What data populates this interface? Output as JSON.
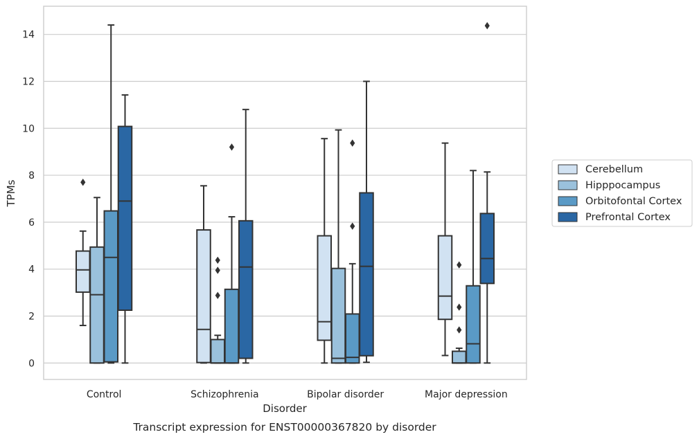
{
  "caption": "Transcript expression for ENST00000367820 by disorder",
  "chart_data": {
    "type": "box",
    "title": "",
    "xlabel": "Disorder",
    "ylabel": "TPMs",
    "ylim": [
      -0.7,
      15.2
    ],
    "yticks": [
      0,
      2,
      4,
      6,
      8,
      10,
      12,
      14
    ],
    "grid": "horizontal",
    "legend_position": "right",
    "categories": [
      "Control",
      "Schizophrenia",
      "Bipolar disorder",
      "Major depression"
    ],
    "series": [
      {
        "name": "Cerebellum",
        "color": "#d1e2f2",
        "boxes": [
          {
            "whislo": 1.6,
            "q1": 3.02,
            "med": 3.97,
            "q3": 4.77,
            "whishi": 5.62,
            "fliers": [
              7.7
            ]
          },
          {
            "whislo": 0.0,
            "q1": 0.02,
            "med": 1.43,
            "q3": 5.67,
            "whishi": 7.55,
            "fliers": []
          },
          {
            "whislo": 0.0,
            "q1": 0.97,
            "med": 1.76,
            "q3": 5.42,
            "whishi": 9.56,
            "fliers": []
          },
          {
            "whislo": 0.32,
            "q1": 1.86,
            "med": 2.85,
            "q3": 5.42,
            "whishi": 9.37,
            "fliers": []
          }
        ]
      },
      {
        "name": "Hipppocampus",
        "color": "#9ac1dc",
        "boxes": [
          {
            "whislo": 0.0,
            "q1": 0.0,
            "med": 2.91,
            "q3": 4.94,
            "whishi": 7.05,
            "fliers": []
          },
          {
            "whislo": 0.0,
            "q1": 0.0,
            "med": 0.0,
            "q3": 1.0,
            "whishi": 1.18,
            "fliers": [
              4.38,
              3.95,
              2.88
            ]
          },
          {
            "whislo": 0.0,
            "q1": 0.0,
            "med": 0.2,
            "q3": 4.03,
            "whishi": 9.93,
            "fliers": []
          },
          {
            "whislo": 0.0,
            "q1": 0.0,
            "med": 0.0,
            "q3": 0.5,
            "whishi": 0.63,
            "fliers": [
              4.18,
              2.38,
              1.41
            ]
          }
        ]
      },
      {
        "name": "Orbitofontal Cortex",
        "color": "#5a9ac6",
        "boxes": [
          {
            "whislo": 0.0,
            "q1": 0.05,
            "med": 4.5,
            "q3": 6.48,
            "whishi": 14.4,
            "fliers": []
          },
          {
            "whislo": 0.0,
            "q1": 0.0,
            "med": 0.0,
            "q3": 3.14,
            "whishi": 6.23,
            "fliers": [
              9.2
            ]
          },
          {
            "whislo": 0.0,
            "q1": 0.0,
            "med": 0.24,
            "q3": 2.09,
            "whishi": 4.23,
            "fliers": [
              9.37,
              5.83
            ]
          },
          {
            "whislo": 0.0,
            "q1": 0.0,
            "med": 0.82,
            "q3": 3.29,
            "whishi": 8.2,
            "fliers": []
          }
        ]
      },
      {
        "name": "Prefrontal Cortex",
        "color": "#2a67a4",
        "boxes": [
          {
            "whislo": 0.0,
            "q1": 2.25,
            "med": 6.9,
            "q3": 10.08,
            "whishi": 11.42,
            "fliers": []
          },
          {
            "whislo": 0.0,
            "q1": 0.2,
            "med": 4.09,
            "q3": 6.06,
            "whishi": 10.8,
            "fliers": []
          },
          {
            "whislo": 0.03,
            "q1": 0.31,
            "med": 4.12,
            "q3": 7.25,
            "whishi": 12.0,
            "fliers": []
          },
          {
            "whislo": 0.0,
            "q1": 3.39,
            "med": 4.45,
            "q3": 6.37,
            "whishi": 8.14,
            "fliers": [
              14.37
            ]
          }
        ]
      }
    ]
  }
}
